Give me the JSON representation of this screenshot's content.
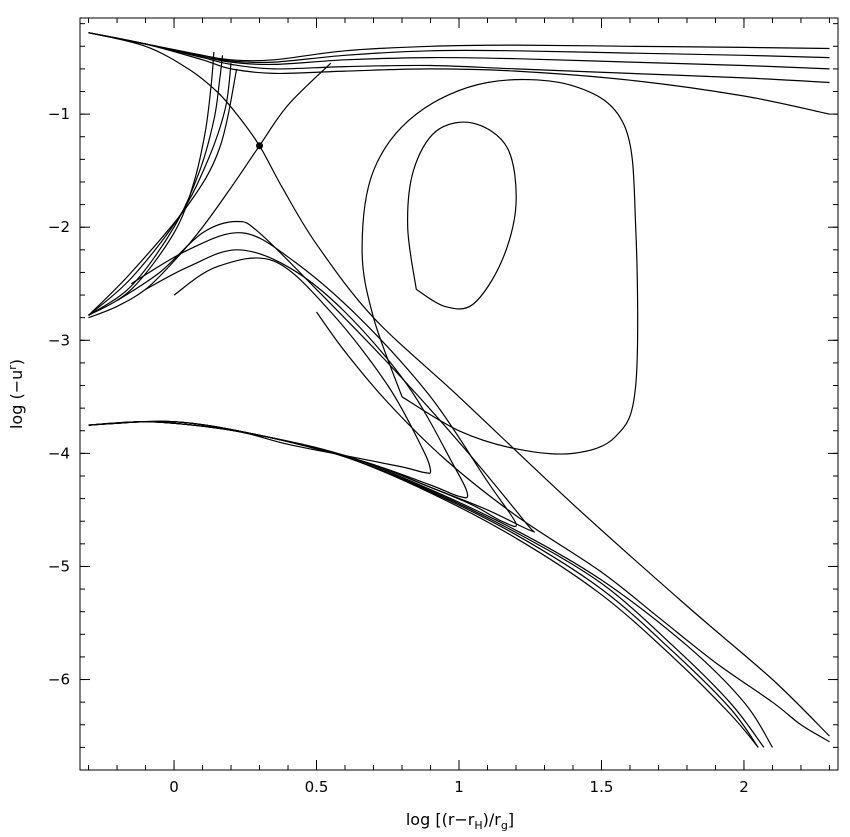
{
  "chart_data": {
    "type": "line",
    "title": "",
    "xlabel": "log [(r−rH)/rg]",
    "xlabel_parts": {
      "prefix": "log [(r−r",
      "sub1": "H",
      "mid": ")/r",
      "sub2": "g",
      "suffix": "]"
    },
    "ylabel": "log (−u^r)",
    "ylabel_parts": {
      "prefix": "log (−u",
      "sup": "r",
      "suffix": ")"
    },
    "xlim": [
      -0.33,
      2.33
    ],
    "ylim": [
      -6.8,
      -0.15
    ],
    "xticks": [
      0,
      0.5,
      1,
      1.5,
      2
    ],
    "xtick_labels": [
      "0",
      "0.5",
      "1",
      "1.5",
      "2"
    ],
    "yticks": [
      -1,
      -2,
      -3,
      -4,
      -5,
      -6
    ],
    "ytick_labels": [
      "−1",
      "−2",
      "−3",
      "−4",
      "−5",
      "−6"
    ],
    "grid": false,
    "legend": "none",
    "critical_point": {
      "x": 0.3,
      "y": -1.28
    },
    "series": [
      {
        "x": [
          -0.3,
          -0.1,
          0.1,
          0.2,
          0.35,
          0.6,
          0.9,
          1.2,
          1.6,
          2.0,
          2.3
        ],
        "y": [
          -0.28,
          -0.38,
          -0.48,
          -0.52,
          -0.52,
          -0.44,
          -0.4,
          -0.39,
          -0.4,
          -0.41,
          -0.42
        ]
      },
      {
        "x": [
          -0.3,
          -0.1,
          0.1,
          0.2,
          0.35,
          0.6,
          0.9,
          1.2,
          1.6,
          2.0,
          2.3
        ],
        "y": [
          -0.28,
          -0.38,
          -0.48,
          -0.53,
          -0.54,
          -0.48,
          -0.44,
          -0.44,
          -0.46,
          -0.48,
          -0.5
        ]
      },
      {
        "x": [
          -0.3,
          -0.1,
          0.1,
          0.2,
          0.35,
          0.6,
          0.9,
          1.2,
          1.6,
          2.0,
          2.3
        ],
        "y": [
          -0.28,
          -0.38,
          -0.49,
          -0.54,
          -0.56,
          -0.52,
          -0.5,
          -0.51,
          -0.54,
          -0.57,
          -0.6
        ]
      },
      {
        "x": [
          -0.3,
          -0.1,
          0.1,
          0.2,
          0.35,
          0.6,
          0.9,
          1.2,
          1.6,
          2.0,
          2.3
        ],
        "y": [
          -0.28,
          -0.38,
          -0.5,
          -0.56,
          -0.6,
          -0.58,
          -0.57,
          -0.6,
          -0.64,
          -0.68,
          -0.72
        ]
      },
      {
        "x": [
          -0.3,
          -0.1,
          0.1,
          0.2,
          0.35,
          0.6,
          0.9,
          1.2,
          1.6,
          2.0,
          2.3
        ],
        "y": [
          -0.28,
          -0.38,
          -0.52,
          -0.6,
          -0.64,
          -0.62,
          -0.6,
          -0.62,
          -0.7,
          -0.84,
          -1.0
        ]
      },
      {
        "x": [
          -0.3,
          -0.1,
          0.05,
          0.15,
          0.22,
          0.3,
          0.38,
          0.5,
          0.7,
          1.0,
          1.4,
          1.8,
          2.1,
          2.3
        ],
        "y": [
          -0.28,
          -0.4,
          -0.6,
          -0.8,
          -1.0,
          -1.28,
          -1.65,
          -2.15,
          -2.8,
          -3.5,
          -4.45,
          -5.35,
          -6.0,
          -6.5
        ]
      },
      {
        "x": [
          -0.3,
          -0.2,
          -0.1,
          0.0,
          0.1,
          0.2,
          0.3,
          0.4,
          0.55
        ],
        "y": [
          -2.8,
          -2.7,
          -2.55,
          -2.3,
          -2.0,
          -1.65,
          -1.28,
          -0.92,
          -0.55
        ]
      },
      {
        "x": [
          -0.3,
          -0.15,
          0.0,
          0.07,
          0.11,
          0.13,
          0.14
        ],
        "y": [
          -2.78,
          -2.55,
          -2.05,
          -1.6,
          -1.15,
          -0.75,
          -0.45
        ]
      },
      {
        "x": [
          -0.3,
          -0.15,
          0.0,
          0.09,
          0.14,
          0.16,
          0.17
        ],
        "y": [
          -2.78,
          -2.52,
          -2.0,
          -1.5,
          -1.05,
          -0.7,
          -0.48
        ]
      },
      {
        "x": [
          -0.3,
          -0.15,
          0.02,
          0.12,
          0.18,
          0.2
        ],
        "y": [
          -2.78,
          -2.45,
          -1.9,
          -1.4,
          -0.95,
          -0.55
        ]
      },
      {
        "x": [
          -0.3,
          -0.15,
          0.05,
          0.16,
          0.22
        ],
        "y": [
          -2.78,
          -2.4,
          -1.8,
          -1.3,
          -0.6
        ]
      },
      {
        "x": [
          -0.3,
          -0.1,
          0.1,
          0.25,
          0.4,
          0.6,
          0.8,
          0.88,
          0.9,
          0.87,
          0.75,
          0.55,
          0.35,
          0.15,
          0.0
        ],
        "y": [
          -3.75,
          -3.72,
          -3.76,
          -3.82,
          -3.92,
          -4.02,
          -4.12,
          -4.17,
          -4.15,
          -3.95,
          -3.4,
          -2.75,
          -2.3,
          -2.35,
          -2.6
        ]
      },
      {
        "x": [
          -0.3,
          -0.1,
          0.1,
          0.3,
          0.5,
          0.7,
          0.9,
          1.0,
          1.03,
          0.98,
          0.82,
          0.6,
          0.4,
          0.22,
          0.05,
          -0.1
        ],
        "y": [
          -3.75,
          -3.72,
          -3.76,
          -3.84,
          -3.96,
          -4.1,
          -4.28,
          -4.38,
          -4.36,
          -4.1,
          -3.4,
          -2.75,
          -2.35,
          -2.2,
          -2.35,
          -2.55
        ]
      },
      {
        "x": [
          -0.3,
          -0.1,
          0.1,
          0.3,
          0.5,
          0.7,
          0.9,
          1.05,
          1.15,
          1.2,
          1.1,
          0.9,
          0.65,
          0.42,
          0.24,
          0.05,
          -0.15
        ],
        "y": [
          -3.75,
          -3.72,
          -3.76,
          -3.84,
          -3.96,
          -4.1,
          -4.3,
          -4.46,
          -4.6,
          -4.62,
          -4.25,
          -3.5,
          -2.8,
          -2.3,
          -2.05,
          -2.2,
          -2.5
        ]
      },
      {
        "x": [
          -0.3,
          -0.1,
          0.1,
          0.3,
          0.5,
          0.7,
          0.9,
          1.1,
          1.25,
          1.23,
          1.0,
          0.75,
          0.5,
          0.3,
          0.22,
          0.1,
          -0.05,
          -0.2
        ],
        "y": [
          -3.75,
          -3.72,
          -3.76,
          -3.84,
          -3.96,
          -4.1,
          -4.3,
          -4.5,
          -4.68,
          -4.6,
          -3.9,
          -3.2,
          -2.55,
          -2.05,
          -1.95,
          -2.05,
          -2.4,
          -2.65
        ]
      },
      {
        "x": [
          -0.3,
          0.0,
          0.3,
          0.6,
          0.9,
          1.2,
          1.5,
          1.75,
          1.95,
          2.05
        ],
        "y": [
          -3.75,
          -3.72,
          -3.84,
          -4.03,
          -4.35,
          -4.75,
          -5.25,
          -5.8,
          -6.3,
          -6.6
        ]
      },
      {
        "x": [
          -0.3,
          0.0,
          0.3,
          0.6,
          0.9,
          1.2,
          1.5,
          1.75,
          1.95,
          2.05
        ],
        "y": [
          -3.75,
          -3.72,
          -3.84,
          -4.03,
          -4.34,
          -4.72,
          -5.2,
          -5.75,
          -6.25,
          -6.6
        ]
      },
      {
        "x": [
          -0.3,
          0.0,
          0.3,
          0.6,
          0.9,
          1.2,
          1.5,
          1.75,
          1.95,
          2.07
        ],
        "y": [
          -3.75,
          -3.72,
          -3.84,
          -4.03,
          -4.33,
          -4.7,
          -5.15,
          -5.7,
          -6.2,
          -6.6
        ]
      },
      {
        "x": [
          -0.3,
          0.0,
          0.3,
          0.6,
          0.9,
          1.2,
          1.5,
          1.8,
          2.0,
          2.1
        ],
        "y": [
          -3.75,
          -3.72,
          -3.84,
          -4.02,
          -4.32,
          -4.68,
          -5.12,
          -5.7,
          -6.2,
          -6.6
        ]
      },
      {
        "x": [
          0.5,
          0.6,
          0.75,
          0.95,
          1.2,
          1.5,
          1.7,
          1.9,
          2.1,
          2.2,
          2.3
        ],
        "y": [
          -2.75,
          -3.1,
          -3.55,
          -4.05,
          -4.55,
          -5.05,
          -5.45,
          -5.85,
          -6.2,
          -6.4,
          -6.55
        ]
      },
      {
        "x": [
          0.8,
          1.0,
          1.2,
          1.4,
          1.55,
          1.62,
          1.62,
          1.58,
          1.4,
          1.1,
          0.85,
          0.7,
          0.66,
          0.7,
          0.8
        ],
        "y": [
          -3.5,
          -3.8,
          -3.96,
          -4.0,
          -3.85,
          -3.4,
          -2.0,
          -1.1,
          -0.75,
          -0.72,
          -1.0,
          -1.5,
          -2.2,
          -2.8,
          -3.5
        ]
      },
      {
        "x": [
          0.85,
          0.95,
          1.05,
          1.15,
          1.2,
          1.17,
          1.05,
          0.92,
          0.84,
          0.82,
          0.85
        ],
        "y": [
          -2.55,
          -2.7,
          -2.68,
          -2.3,
          -1.8,
          -1.3,
          -1.08,
          -1.15,
          -1.5,
          -2.0,
          -2.55
        ]
      }
    ]
  }
}
